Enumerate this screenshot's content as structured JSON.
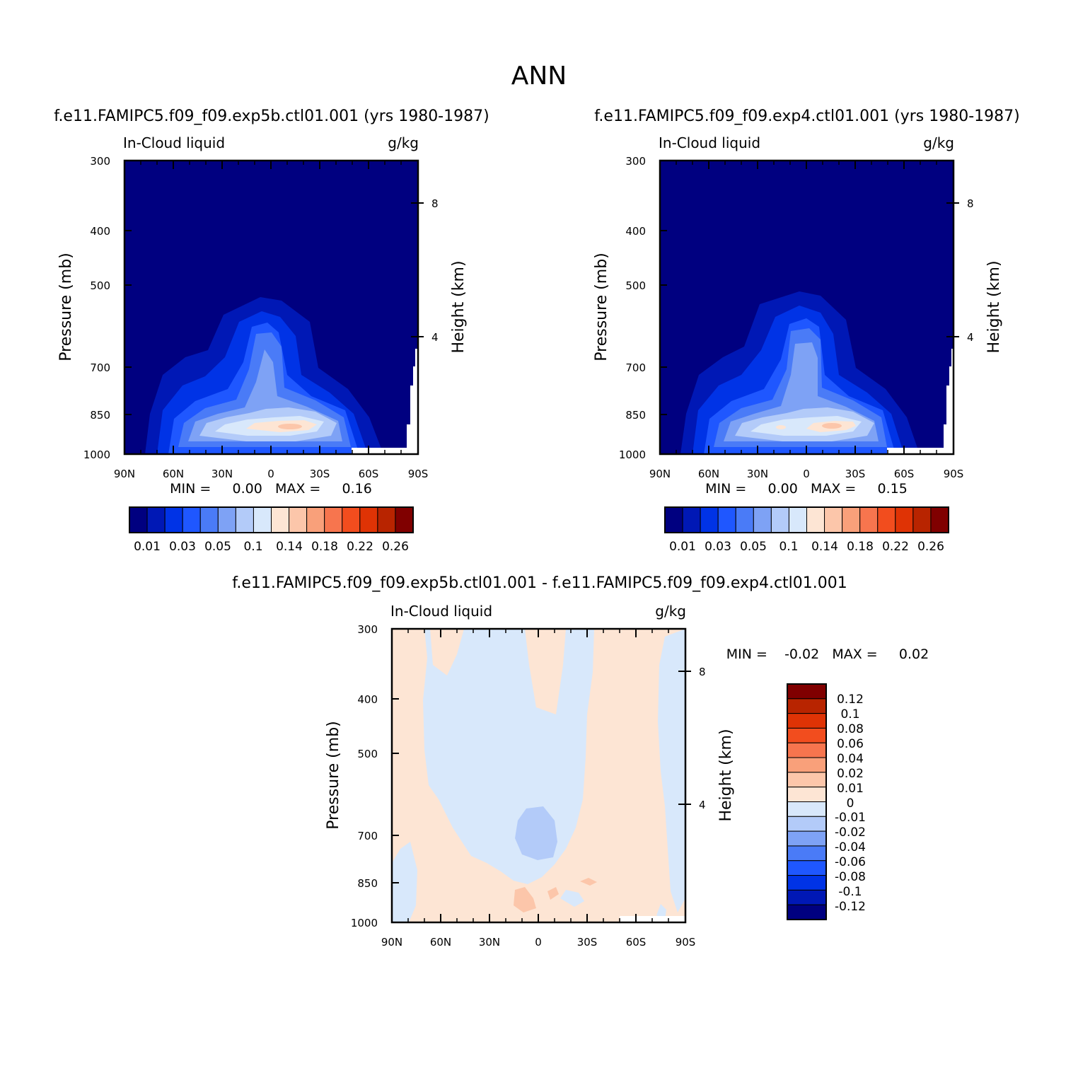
{
  "figure_title": "ANN",
  "chart_data": [
    {
      "type": "heatmap",
      "panel": "top-left",
      "title": "f.e11.FAMIPC5.f09_f09.exp5b.ctl01.001 (yrs 1980-1987)",
      "subtitle_left": "In-Cloud liquid",
      "subtitle_right": "g/kg",
      "ylabel": "Pressure (mb)",
      "y2label": "Height (km)",
      "x_ticks": [
        "90N",
        "60N",
        "30N",
        "0",
        "30S",
        "60S",
        "90S"
      ],
      "y_ticks": [
        "300",
        "400",
        "500",
        "700",
        "850",
        "1000"
      ],
      "y2_ticks": [
        "8",
        "4"
      ],
      "min_max_text": "MIN =     0.00   MAX =     0.16",
      "min": 0.0,
      "max": 0.16,
      "colorbar": {
        "orientation": "horizontal",
        "colors": [
          "#000080",
          "#0018b5",
          "#0033e6",
          "#1f57ff",
          "#4a7bf7",
          "#7ea2f5",
          "#b3cbf9",
          "#d8e8fb",
          "#fde5d4",
          "#fcc6aa",
          "#f9a07a",
          "#f7754e",
          "#f24d1e",
          "#df3305",
          "#b82400",
          "#800000"
        ],
        "labels": [
          "0.01",
          "0.03",
          "0.05",
          "0.1",
          "0.14",
          "0.18",
          "0.22",
          "0.26"
        ]
      },
      "field_max_center": 0.16
    },
    {
      "type": "heatmap",
      "panel": "top-right",
      "title": "f.e11.FAMIPC5.f09_f09.exp4.ctl01.001 (yrs 1980-1987)",
      "subtitle_left": "In-Cloud liquid",
      "subtitle_right": "g/kg",
      "ylabel": "Pressure (mb)",
      "y2label": "Height (km)",
      "x_ticks": [
        "90N",
        "60N",
        "30N",
        "0",
        "30S",
        "60S",
        "90S"
      ],
      "y_ticks": [
        "300",
        "400",
        "500",
        "700",
        "850",
        "1000"
      ],
      "y2_ticks": [
        "8",
        "4"
      ],
      "min_max_text": "MIN =     0.00   MAX =     0.15",
      "min": 0.0,
      "max": 0.15,
      "colorbar": {
        "orientation": "horizontal",
        "colors": [
          "#000080",
          "#0018b5",
          "#0033e6",
          "#1f57ff",
          "#4a7bf7",
          "#7ea2f5",
          "#b3cbf9",
          "#d8e8fb",
          "#fde5d4",
          "#fcc6aa",
          "#f9a07a",
          "#f7754e",
          "#f24d1e",
          "#df3305",
          "#b82400",
          "#800000"
        ],
        "labels": [
          "0.01",
          "0.03",
          "0.05",
          "0.1",
          "0.14",
          "0.18",
          "0.22",
          "0.26"
        ]
      }
    },
    {
      "type": "heatmap",
      "panel": "bottom",
      "title": "f.e11.FAMIPC5.f09_f09.exp5b.ctl01.001 - f.e11.FAMIPC5.f09_f09.exp4.ctl01.001",
      "subtitle_left": "In-Cloud liquid",
      "subtitle_right": "g/kg",
      "ylabel": "Pressure (mb)",
      "y2label": "Height (km)",
      "x_ticks": [
        "90N",
        "60N",
        "30N",
        "0",
        "30S",
        "60S",
        "90S"
      ],
      "y_ticks": [
        "300",
        "400",
        "500",
        "700",
        "850",
        "1000"
      ],
      "y2_ticks": [
        "8",
        "4"
      ],
      "min_max_text": "MIN =    -0.02   MAX =     0.02",
      "min": -0.02,
      "max": 0.02,
      "colorbar": {
        "orientation": "vertical",
        "colors": [
          "#800000",
          "#b82400",
          "#df3305",
          "#f24d1e",
          "#f7754e",
          "#f9a07a",
          "#fcc6aa",
          "#fde5d4",
          "#d8e8fb",
          "#b3cbf9",
          "#7ea2f5",
          "#4a7bf7",
          "#1f57ff",
          "#0033e6",
          "#0018b5",
          "#000080"
        ],
        "labels": [
          "0.12",
          "0.1",
          "0.08",
          "0.06",
          "0.04",
          "0.02",
          "0.01",
          "0",
          "-0.01",
          "-0.02",
          "-0.04",
          "-0.06",
          "-0.08",
          "-0.1",
          "-0.12"
        ]
      }
    }
  ]
}
